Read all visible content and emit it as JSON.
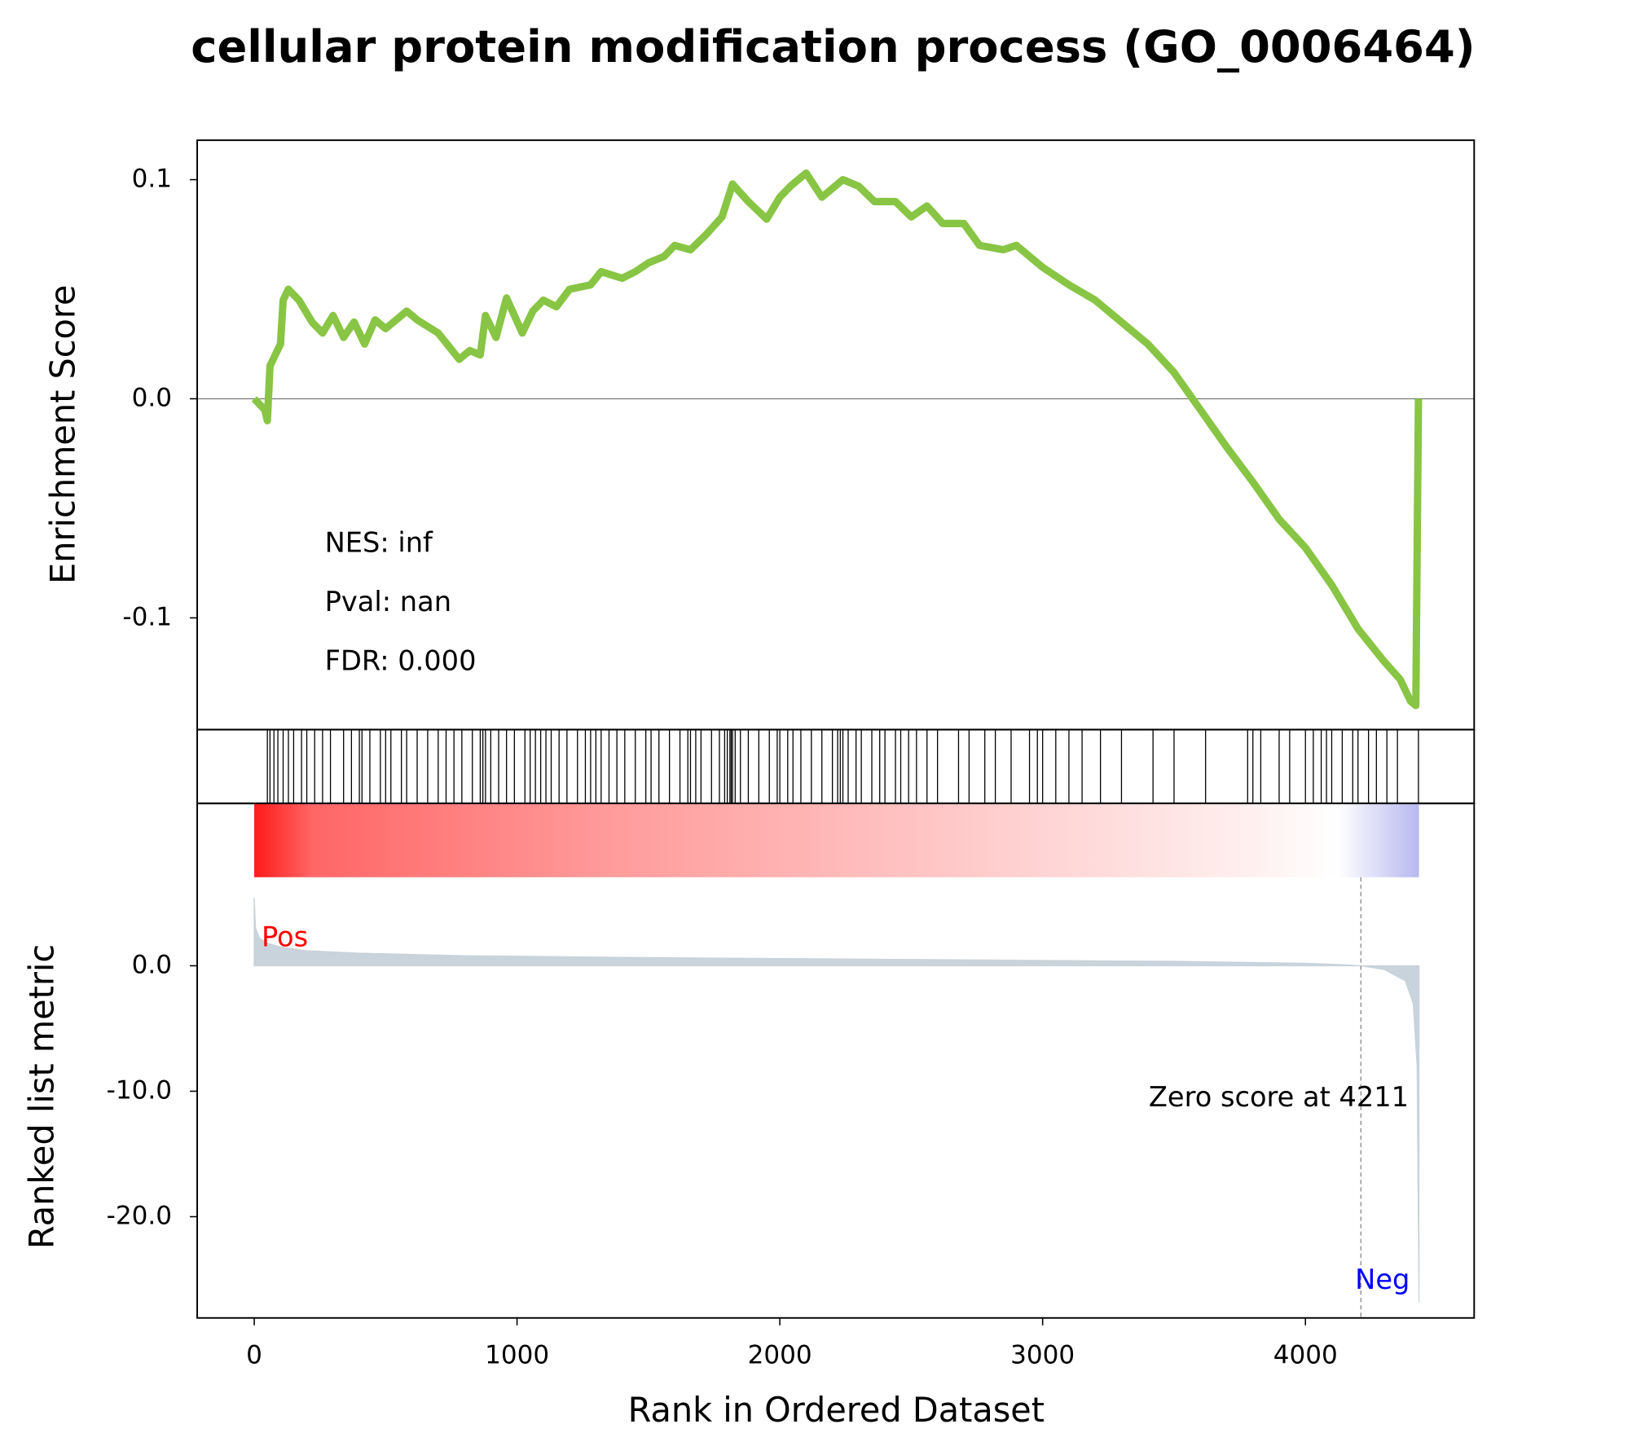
{
  "chart_data": [
    {
      "type": "line",
      "title": "cellular protein modification process (GO_0006464)",
      "y_label": "Enrichment Score",
      "color": "#88c544",
      "xlim": [
        -217,
        4642
      ],
      "ylim": [
        -0.151,
        0.118
      ],
      "yticks": [
        0.1,
        {
          "value": 0,
          "label": "0.0"
        },
        -0.1
      ],
      "hline": 0,
      "annotations": [
        "NES: inf",
        "Pval: nan",
        "FDR: 0.000"
      ],
      "x": [
        0,
        40,
        50,
        60,
        80,
        100,
        110,
        130,
        170,
        220,
        260,
        300,
        340,
        380,
        420,
        460,
        500,
        580,
        620,
        700,
        780,
        820,
        860,
        880,
        920,
        960,
        1020,
        1060,
        1100,
        1150,
        1200,
        1280,
        1320,
        1400,
        1450,
        1500,
        1560,
        1600,
        1660,
        1720,
        1780,
        1820,
        1880,
        1950,
        2000,
        2040,
        2100,
        2160,
        2240,
        2300,
        2360,
        2440,
        2500,
        2560,
        2620,
        2700,
        2760,
        2850,
        2900,
        3000,
        3100,
        3200,
        3300,
        3400,
        3500,
        3600,
        3700,
        3800,
        3900,
        4000,
        4100,
        4200,
        4300,
        4360,
        4400,
        4420,
        4430
      ],
      "values": [
        0,
        -0.005,
        -0.01,
        0.015,
        0.02,
        0.025,
        0.045,
        0.05,
        0.045,
        0.035,
        0.03,
        0.038,
        0.028,
        0.035,
        0.025,
        0.036,
        0.032,
        0.04,
        0.036,
        0.03,
        0.018,
        0.022,
        0.02,
        0.038,
        0.028,
        0.046,
        0.03,
        0.04,
        0.045,
        0.042,
        0.05,
        0.052,
        0.058,
        0.055,
        0.058,
        0.062,
        0.065,
        0.07,
        0.068,
        0.075,
        0.083,
        0.098,
        0.09,
        0.082,
        0.092,
        0.097,
        0.103,
        0.092,
        0.1,
        0.097,
        0.09,
        0.09,
        0.083,
        0.088,
        0.08,
        0.08,
        0.07,
        0.068,
        0.07,
        0.06,
        0.052,
        0.045,
        0.035,
        0.025,
        0.012,
        -0.005,
        -0.022,
        -0.038,
        -0.055,
        -0.068,
        -0.085,
        -0.105,
        -0.12,
        -0.128,
        -0.138,
        -0.14,
        0
      ]
    },
    {
      "type": "rug",
      "color": "#000000",
      "xlim": [
        -217,
        4642
      ],
      "x": [
        50,
        60,
        75,
        90,
        110,
        130,
        150,
        180,
        200,
        230,
        260,
        290,
        340,
        370,
        400,
        410,
        440,
        480,
        500,
        520,
        560,
        580,
        620,
        660,
        700,
        730,
        760,
        790,
        830,
        860,
        870,
        880,
        900,
        930,
        960,
        990,
        1030,
        1050,
        1070,
        1090,
        1110,
        1130,
        1160,
        1190,
        1230,
        1260,
        1280,
        1300,
        1320,
        1350,
        1380,
        1410,
        1450,
        1490,
        1510,
        1540,
        1580,
        1620,
        1650,
        1660,
        1680,
        1700,
        1740,
        1770,
        1790,
        1800,
        1810,
        1815,
        1820,
        1830,
        1850,
        1880,
        1920,
        1960,
        1990,
        2000,
        2030,
        2050,
        2080,
        2120,
        2160,
        2200,
        2220,
        2230,
        2240,
        2260,
        2290,
        2310,
        2350,
        2380,
        2400,
        2440,
        2460,
        2490,
        2520,
        2560,
        2600,
        2680,
        2720,
        2780,
        2820,
        2880,
        2950,
        2980,
        3000,
        3050,
        3100,
        3150,
        3220,
        3300,
        3420,
        3500,
        3620,
        3780,
        3800,
        3830,
        3900,
        3940,
        4000,
        4030,
        4060,
        4080,
        4100,
        4140,
        4180,
        4200,
        4240,
        4270,
        4310,
        4350,
        4430
      ]
    },
    {
      "type": "area",
      "y_label": "Ranked list metric",
      "x_label": "Rank in Ordered Dataset",
      "color": "#c9d3db",
      "xlim": [
        -217,
        4642
      ],
      "ylim": [
        -28.07,
        12.94
      ],
      "xticks": [
        0,
        1000,
        2000,
        3000,
        4000
      ],
      "yticks": [
        {
          "value": 0,
          "label": "0.0"
        },
        {
          "value": -10,
          "label": "-10.0"
        },
        {
          "value": -20,
          "label": "-20.0"
        }
      ],
      "pos_label": "Pos",
      "neg_label": "Neg",
      "zero_label": "Zero score at 4211",
      "zero_score": 4211,
      "x": [
        0,
        5,
        20,
        50,
        100,
        200,
        400,
        800,
        1500,
        2500,
        3500,
        4000,
        4150,
        4211,
        4300,
        4380,
        4410,
        4425,
        4432
      ],
      "values": [
        5.4,
        3.0,
        2.2,
        1.8,
        1.5,
        1.2,
        1.0,
        0.8,
        0.65,
        0.5,
        0.35,
        0.2,
        0.08,
        0,
        -0.3,
        -1.2,
        -3,
        -8,
        -26.8
      ]
    }
  ]
}
